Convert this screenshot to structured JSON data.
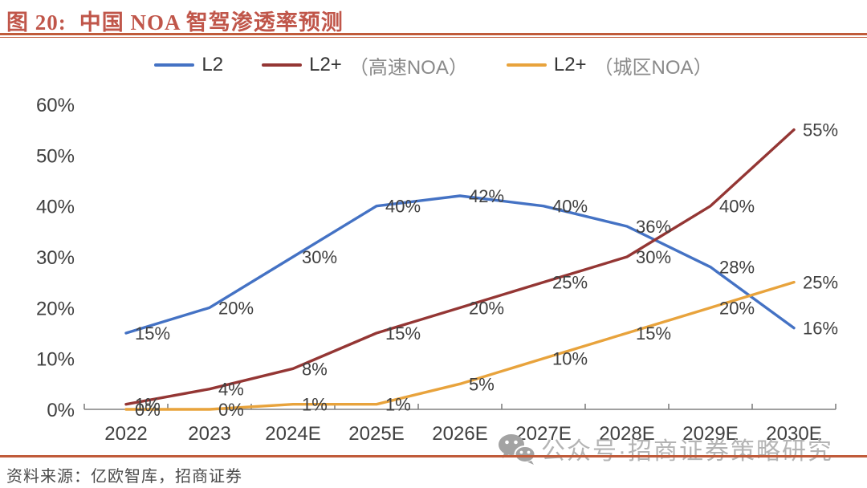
{
  "header": {
    "figure_label": "图 20:",
    "title": "中国 NOA 智驾渗透率预测"
  },
  "legend": {
    "items": [
      {
        "id": "l2",
        "main": "L2",
        "paren": "",
        "color": "#4472C4"
      },
      {
        "id": "l2plus-highway-noa",
        "main": "L2+",
        "paren": "（高速NOA）",
        "color": "#943634"
      },
      {
        "id": "l2plus-urban-noa",
        "main": "L2+",
        "paren": "（城区NOA）",
        "color": "#E8A33C"
      }
    ]
  },
  "chart_data": {
    "type": "line",
    "title": "中国 NOA 智驾渗透率预测",
    "categories": [
      "2022",
      "2023",
      "2024E",
      "2025E",
      "2026E",
      "2027E",
      "2028E",
      "2029E",
      "2030E"
    ],
    "series": [
      {
        "name": "L2",
        "color": "#4472C4",
        "values": [
          15,
          20,
          30,
          40,
          42,
          40,
          36,
          28,
          16
        ]
      },
      {
        "name": "L2+（高速NOA）",
        "color": "#943634",
        "values": [
          1,
          4,
          8,
          15,
          20,
          25,
          30,
          40,
          55
        ]
      },
      {
        "name": "L2+（城区NOA）",
        "color": "#E8A33C",
        "values": [
          0,
          0,
          1,
          1,
          5,
          10,
          15,
          20,
          25
        ]
      }
    ],
    "xlabel": "",
    "ylabel": "",
    "ylim": [
      0,
      60
    ],
    "y_tick_step": 10,
    "y_tick_suffix": "%",
    "data_label_suffix": "%",
    "grid": false,
    "legend_position": "top",
    "axis_color": "#808080",
    "label_color": "#404040"
  },
  "footer": {
    "source": "资料来源：亿欧智库，招商证券"
  },
  "watermark": {
    "icon": "wechat-icon",
    "text": "公众号·招商证券策略研究"
  },
  "colors": {
    "title": "#c0564a",
    "rule": "#c05b3a",
    "background": "#ffffff"
  }
}
